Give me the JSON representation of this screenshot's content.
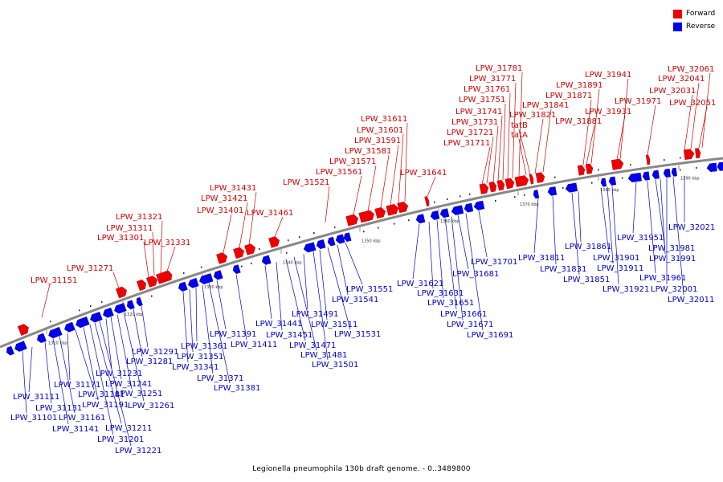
{
  "legend": {
    "forward_label": "Forward",
    "reverse_label": "Reverse",
    "forward_color": "#ee0000",
    "reverse_color": "#0000ee"
  },
  "caption": "Legionella pneumophila 130b draft genome. - 0..3489800",
  "ticks": [
    "1310 kbp",
    "1320 kbp",
    "1330 kbp",
    "1340 kbp",
    "1350 kbp",
    "1360 kbp",
    "1370 kbp",
    "1380 kbp",
    "1390 kbp"
  ],
  "forward_genes": [
    "LPW_31151",
    "LPW_31271",
    "LPW_31301",
    "LPW_31311",
    "LPW_31321",
    "LPW_31331",
    "LPW_31401",
    "LPW_31421",
    "LPW_31431",
    "LPW_31461",
    "LPW_31521",
    "LPW_31561",
    "LPW_31571",
    "LPW_31581",
    "LPW_31591",
    "LPW_31601",
    "LPW_31611",
    "LPW_31641",
    "LPW_31711",
    "LPW_31721",
    "LPW_31731",
    "LPW_31741",
    "LPW_31751",
    "LPW_31761",
    "LPW_31771",
    "LPW_31781",
    "tatA",
    "tatB",
    "LPW_31821",
    "LPW_31841",
    "LPW_31871",
    "LPW_31881",
    "LPW_31891",
    "LPW_31931",
    "LPW_31941",
    "LPW_31971",
    "LPW_32031",
    "LPW_32041",
    "LPW_32051",
    "LPW_32061"
  ],
  "reverse_genes": [
    "LPW_31101",
    "LPW_31111",
    "LPW_31131",
    "LPW_31141",
    "LPW_31161",
    "LPW_31171",
    "LPW_31181",
    "LPW_31191",
    "LPW_31201",
    "LPW_31211",
    "LPW_31221",
    "LPW_31231",
    "LPW_31241",
    "LPW_31251",
    "LPW_31261",
    "LPW_31281",
    "LPW_31291",
    "LPW_31341",
    "LPW_31351",
    "LPW_31361",
    "LPW_31371",
    "LPW_31381",
    "LPW_31391",
    "LPW_31411",
    "LPW_31441",
    "LPW_31451",
    "LPW_31471",
    "LPW_31481",
    "LPW_31491",
    "LPW_31501",
    "LPW_31511",
    "LPW_31531",
    "LPW_31541",
    "LPW_31551",
    "LPW_31621",
    "LPW_31631",
    "LPW_31651",
    "LPW_31661",
    "LPW_31671",
    "LPW_31681",
    "LPW_31691",
    "LPW_31701",
    "LPW_31811",
    "LPW_31831",
    "LPW_31851",
    "LPW_31861",
    "LPW_31901",
    "LPW_31911",
    "LPW_31921",
    "LPW_31951",
    "LPW_31961",
    "LPW_31981",
    "LPW_31991",
    "LPW_32001",
    "LPW_32011",
    "LPW_32021"
  ]
}
